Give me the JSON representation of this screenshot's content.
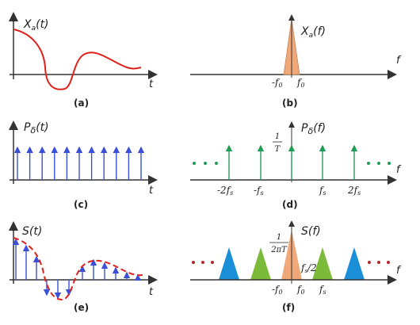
{
  "panels": {
    "a": {
      "ylabel": "X",
      "ysub": "a",
      "yarg": "(t)",
      "xlabel": "t",
      "caption": "(a)"
    },
    "b": {
      "ylabel": "X",
      "ysub": "a",
      "yarg": "(f)",
      "xlabel": "f",
      "caption": "(b)",
      "ticks": [
        "-f",
        "f"
      ],
      "tick_sub": "0"
    },
    "c": {
      "ylabel": "P",
      "ysub": "δ",
      "yarg": "(t)",
      "xlabel": "t",
      "caption": "(c)"
    },
    "d": {
      "ylabel": "P",
      "ysub": "δ",
      "yarg": "(f)",
      "xlabel": "f",
      "caption": "(d)",
      "frac_num": "1",
      "frac_den": "T",
      "ticks": [
        "-2f",
        "-f",
        "f",
        "2f"
      ],
      "tick_sub": "s"
    },
    "e": {
      "ylabel": "S(t)",
      "xlabel": "t",
      "caption": "(e)"
    },
    "f": {
      "ylabel": "S(f)",
      "xlabel": "f",
      "caption": "(f)",
      "frac_num": "1",
      "frac_den": "2πT",
      "half": "f",
      "half_sub": "s",
      "half_tail": "/2",
      "ticks": [
        "-f",
        "f",
        "f"
      ],
      "tick_subs": [
        "0",
        "0",
        "s"
      ]
    }
  },
  "colors": {
    "axis": "#333333",
    "signal": "#e0201b",
    "impulse_time": "#3b4fd8",
    "impulse_freq": "#1f9e55",
    "band_center": "#f0a878",
    "band_green": "#7cbb3a",
    "band_blue": "#1a8fd8",
    "dots_red": "#b5262a"
  }
}
